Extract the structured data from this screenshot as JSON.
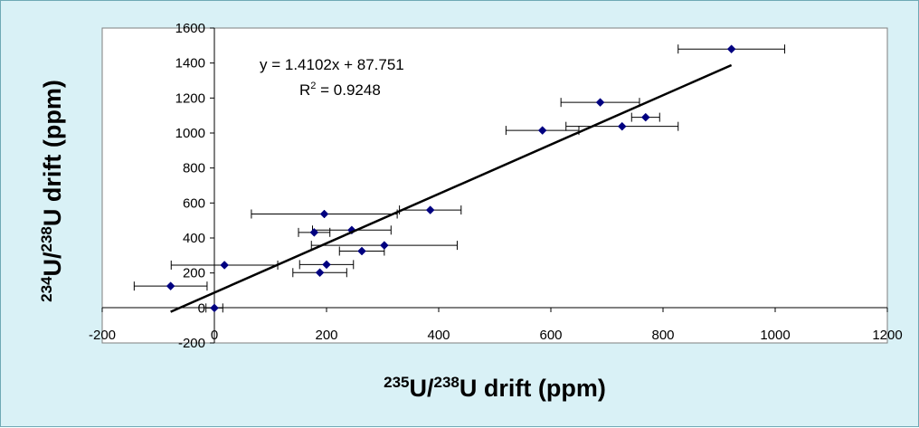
{
  "chart_data": {
    "type": "scatter",
    "title": "",
    "xlabel": {
      "pre": "",
      "sup1": "235",
      "mid": "U/",
      "sup2": "238",
      "post": "U drift (ppm)"
    },
    "ylabel": {
      "pre": "",
      "sup1": "234",
      "mid": "U/",
      "sup2": "238",
      "post": "U drift (ppm)"
    },
    "xlim": [
      -200,
      1200
    ],
    "ylim": [
      -200,
      1600
    ],
    "xticks": [
      -200,
      0,
      200,
      400,
      600,
      800,
      1000,
      1200
    ],
    "yticks": [
      -200,
      0,
      200,
      400,
      600,
      800,
      1000,
      1200,
      1400,
      1600
    ],
    "grid": false,
    "legend": "none",
    "marker_color": "#000080",
    "plot_background": "#ffffff",
    "frame_color": "#7f7f7f",
    "trendline": {
      "slope": 1.4102,
      "intercept": 87.751,
      "x_range": [
        -78,
        922
      ],
      "equation": "y = 1.4102x + 87.751",
      "r2_label": "R",
      "r2_sup": "2",
      "r2_value": " = 0.9248"
    },
    "points": [
      {
        "x": 0,
        "y": 0,
        "xerr": 15
      },
      {
        "x": -78,
        "y": 125,
        "xerr": 65
      },
      {
        "x": 18,
        "y": 245,
        "xerr": 95
      },
      {
        "x": 188,
        "y": 202,
        "xerr": 48
      },
      {
        "x": 200,
        "y": 248,
        "xerr": 48
      },
      {
        "x": 178,
        "y": 432,
        "xerr": 28
      },
      {
        "x": 245,
        "y": 445,
        "xerr": 70
      },
      {
        "x": 196,
        "y": 537,
        "xerr": 130
      },
      {
        "x": 263,
        "y": 325,
        "xerr": 40
      },
      {
        "x": 303,
        "y": 358,
        "xerr": 130
      },
      {
        "x": 385,
        "y": 560,
        "xerr": 55
      },
      {
        "x": 585,
        "y": 1015,
        "xerr": 65
      },
      {
        "x": 688,
        "y": 1175,
        "xerr": 70
      },
      {
        "x": 727,
        "y": 1038,
        "xerr": 100
      },
      {
        "x": 769,
        "y": 1090,
        "xerr": 25
      },
      {
        "x": 922,
        "y": 1480,
        "xerr": 95
      }
    ]
  }
}
